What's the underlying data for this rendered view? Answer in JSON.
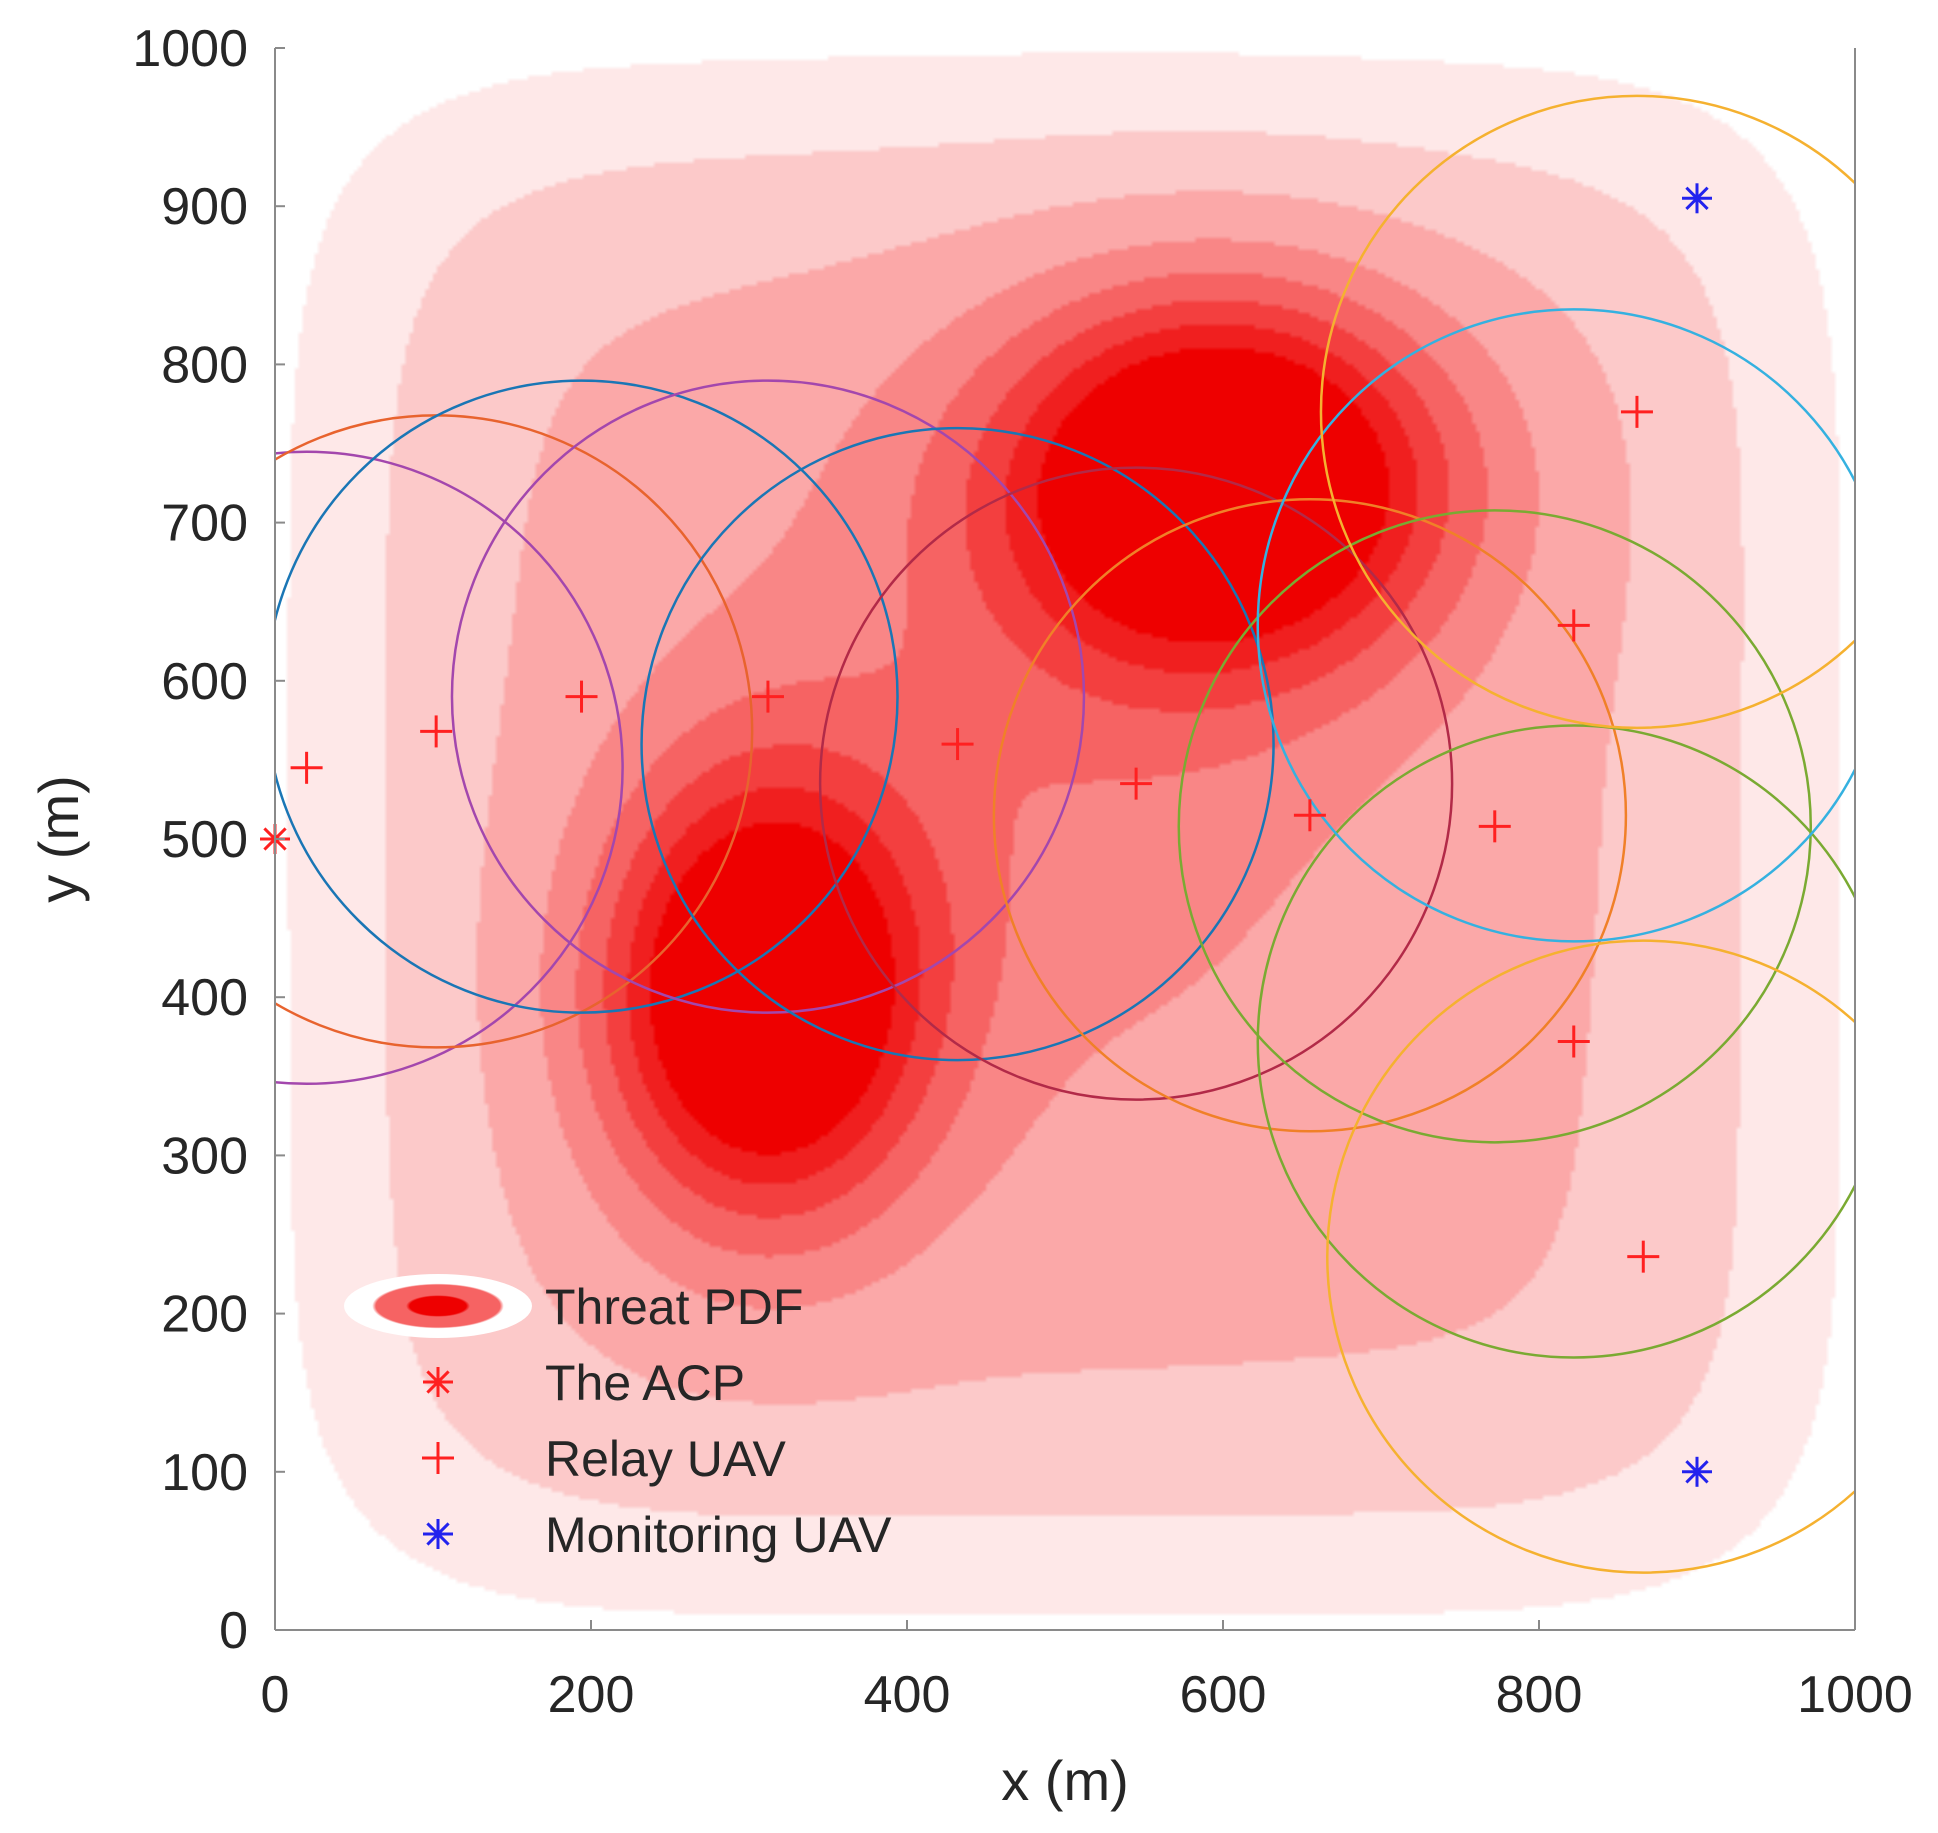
{
  "chart_data": {
    "type": "contour-scatter",
    "xlabel": "x (m)",
    "ylabel": "y (m)",
    "xlim": [
      0,
      1000
    ],
    "ylim": [
      0,
      1000
    ],
    "xticks": [
      0,
      200,
      400,
      600,
      800,
      1000
    ],
    "yticks": [
      0,
      100,
      200,
      300,
      400,
      500,
      600,
      700,
      800,
      900,
      1000
    ],
    "comm_radius": 200,
    "threat_pdf": {
      "label": "Threat PDF",
      "colors": [
        "#fee8e8",
        "#fcc9c9",
        "#fba8a8",
        "#f98686",
        "#f66363",
        "#f33f3f",
        "#f01f1f",
        "#ee0000"
      ],
      "peaks": [
        {
          "x": 600,
          "y": 725,
          "amplitude": 1.0,
          "sx": 95,
          "sy": 80
        },
        {
          "x": 310,
          "y": 400,
          "amplitude": 0.95,
          "sx": 70,
          "sy": 95
        }
      ],
      "background": {
        "x": 500,
        "y": 500,
        "sx": 460,
        "sy": 460
      }
    },
    "acp": {
      "label": "The ACP",
      "color": "#ff2020",
      "points": [
        {
          "x": 0,
          "y": 500
        }
      ]
    },
    "relay_uav": {
      "label": "Relay UAV",
      "color": "#ff2020",
      "points": [
        {
          "x": 20,
          "y": 545,
          "circle_color": "#a347ad"
        },
        {
          "x": 102,
          "y": 568,
          "circle_color": "#e8632e"
        },
        {
          "x": 194,
          "y": 590,
          "circle_color": "#1a76b5"
        },
        {
          "x": 312,
          "y": 590,
          "circle_color": "#a347ad"
        },
        {
          "x": 432,
          "y": 560,
          "circle_color": "#1a76b5"
        },
        {
          "x": 545,
          "y": 535,
          "circle_color": "#b22a48"
        },
        {
          "x": 655,
          "y": 515,
          "circle_color": "#f08028"
        },
        {
          "x": 772,
          "y": 508,
          "circle_color": "#7aaa32"
        },
        {
          "x": 822,
          "y": 372,
          "circle_color": "#7aaa32"
        },
        {
          "x": 866,
          "y": 236,
          "circle_color": "#f5b130"
        },
        {
          "x": 822,
          "y": 635,
          "circle_color": "#35b1e0"
        },
        {
          "x": 862,
          "y": 770,
          "circle_color": "#f5b130"
        }
      ]
    },
    "monitoring_uav": {
      "label": "Monitoring UAV",
      "color": "#2222ee",
      "points": [
        {
          "x": 900,
          "y": 905
        },
        {
          "x": 900,
          "y": 100
        }
      ]
    },
    "legend": {
      "position": "bottom-left",
      "entries": [
        "Threat PDF",
        "The ACP",
        "Relay UAV",
        "Monitoring UAV"
      ]
    }
  }
}
